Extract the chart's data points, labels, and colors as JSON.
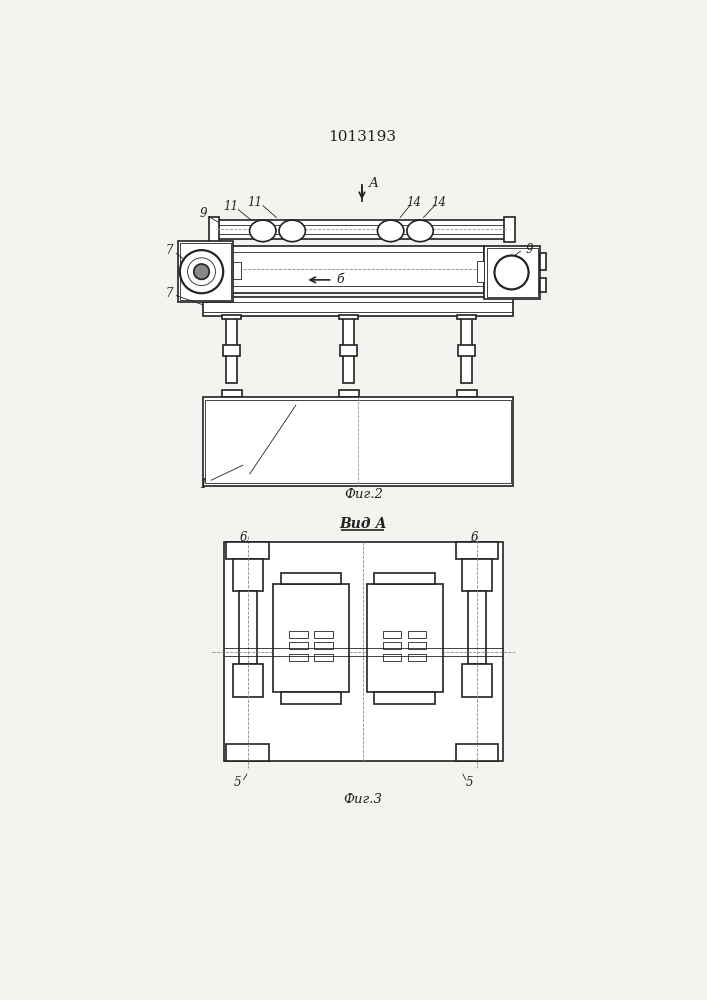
{
  "title": "1013193",
  "title_fontsize": 11,
  "fig2_caption": "Фиг.2",
  "fig3_caption": "Фиг.3",
  "view_a_label": "Вид А",
  "background_color": "#f5f3ef",
  "line_color": "#222222",
  "lw": 1.2,
  "tlw": 0.6,
  "label_fontsize": 8.5,
  "caption_fontsize": 9.5
}
